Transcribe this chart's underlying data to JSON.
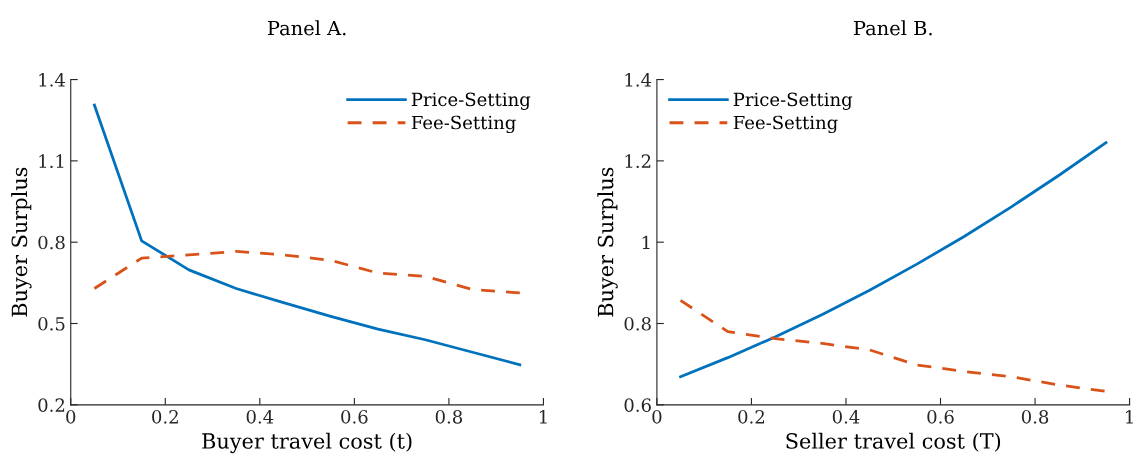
{
  "chart_data": [
    {
      "type": "line",
      "title": "Panel A.",
      "xlabel": "Buyer travel cost (t)",
      "ylabel": "Buyer Surplus",
      "x": [
        0.05,
        0.15,
        0.25,
        0.35,
        0.45,
        0.55,
        0.65,
        0.75,
        0.85,
        0.95
      ],
      "series": [
        {
          "name": "Price-Setting",
          "color": "#0072bd",
          "line_style": "solid",
          "values": [
            1.306,
            0.805,
            0.698,
            0.629,
            0.577,
            0.526,
            0.479,
            0.44,
            0.394,
            0.348
          ]
        },
        {
          "name": "Fee-Setting",
          "color": "#d95319",
          "line_style": "dashed",
          "values": [
            0.629,
            0.741,
            0.753,
            0.766,
            0.753,
            0.733,
            0.686,
            0.674,
            0.625,
            0.613
          ]
        }
      ],
      "xlim": [
        0,
        1
      ],
      "xticks": [
        0,
        0.2,
        0.4,
        0.6,
        0.8,
        1
      ],
      "ylim": [
        0.2,
        1.4
      ],
      "yticks": [
        0.2,
        0.5,
        0.8,
        1.1,
        1.4
      ],
      "grid": false,
      "legend": "top right",
      "marker": "none"
    },
    {
      "type": "line",
      "title": "Panel B.",
      "xlabel": "Seller travel cost (T)",
      "ylabel": "Buyer Surplus",
      "x": [
        0.05,
        0.15,
        0.25,
        0.35,
        0.45,
        0.55,
        0.65,
        0.75,
        0.85,
        0.95
      ],
      "series": [
        {
          "name": "Price-Setting",
          "color": "#0072bd",
          "line_style": "solid",
          "values": [
            0.669,
            0.716,
            0.767,
            0.822,
            0.882,
            0.946,
            1.014,
            1.087,
            1.164,
            1.245
          ]
        },
        {
          "name": "Fee-Setting",
          "color": "#d95319",
          "line_style": "dashed",
          "values": [
            0.857,
            0.78,
            0.763,
            0.751,
            0.735,
            0.698,
            0.682,
            0.669,
            0.649,
            0.633
          ]
        }
      ],
      "xlim": [
        0,
        1
      ],
      "xticks": [
        0,
        0.2,
        0.4,
        0.6,
        0.8,
        1
      ],
      "ylim": [
        0.6,
        1.4
      ],
      "yticks": [
        0.6,
        0.8,
        1,
        1.2,
        1.4
      ],
      "grid": false,
      "legend": "top left",
      "marker": "none"
    }
  ]
}
